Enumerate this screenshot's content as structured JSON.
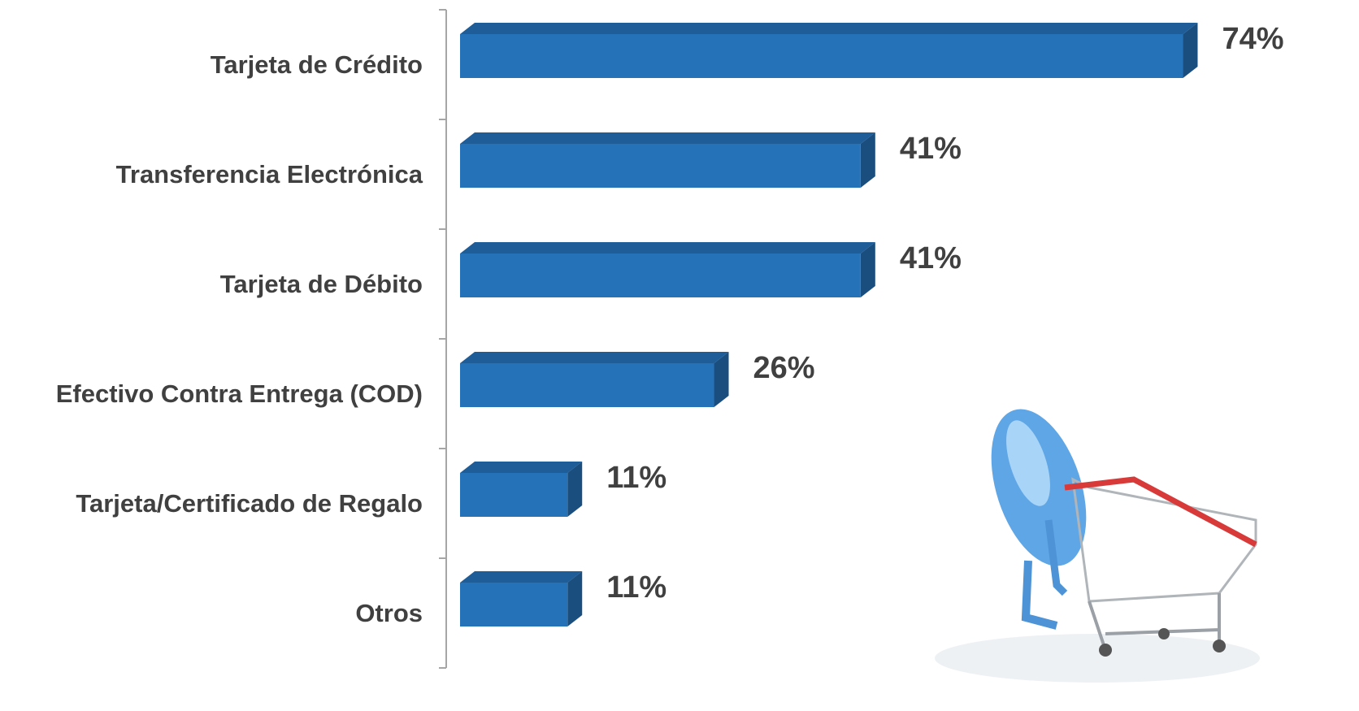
{
  "chart_data": {
    "type": "bar",
    "orientation": "horizontal",
    "categories": [
      "Tarjeta de Crédito",
      "Transferencia Electrónica",
      "Tarjeta de Débito",
      "Efectivo Contra Entrega (COD)",
      "Tarjeta/Certificado de Regalo",
      "Otros"
    ],
    "values": [
      74,
      41,
      41,
      26,
      11,
      11
    ],
    "value_labels": [
      "74%",
      "41%",
      "41%",
      "26%",
      "11%",
      "11%"
    ],
    "color": "#2672b9"
  }
}
